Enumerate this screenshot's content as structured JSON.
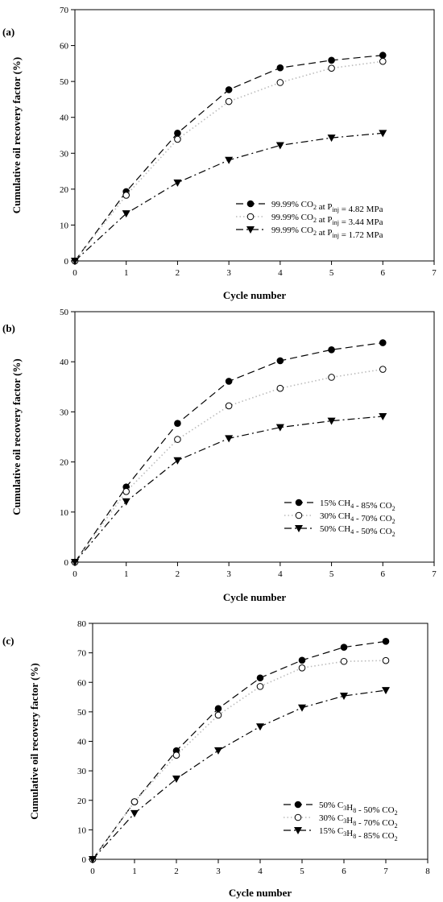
{
  "chart_data": [
    {
      "type": "line",
      "panel_label": "(a)",
      "xlabel": "Cycle number",
      "ylabel": "Cumulative oil recovery factor (%)",
      "xlim": [
        0,
        7
      ],
      "ylim": [
        0,
        70
      ],
      "xticks": [
        0,
        1,
        2,
        3,
        4,
        5,
        6,
        7
      ],
      "yticks": [
        0,
        10,
        20,
        30,
        40,
        50,
        60,
        70
      ],
      "grid": false,
      "legend_position": "right",
      "series": [
        {
          "legend": [
            [
              "t",
              "99.99% CO"
            ],
            [
              "sub",
              "2"
            ],
            [
              "t",
              " at P"
            ],
            [
              "sub",
              "inj"
            ],
            [
              "t",
              " = 4.82 MPa"
            ]
          ],
          "marker": "filled-circle",
          "line": "dashed",
          "x": [
            0,
            1,
            2,
            3,
            4,
            5,
            6
          ],
          "y": [
            0,
            19.3,
            35.6,
            47.7,
            53.8,
            55.9,
            57.3
          ]
        },
        {
          "legend": [
            [
              "t",
              "99.99% CO"
            ],
            [
              "sub",
              "2"
            ],
            [
              "t",
              " at P"
            ],
            [
              "sub",
              "inj"
            ],
            [
              "t",
              " = 3.44 MPa"
            ]
          ],
          "marker": "open-circle",
          "line": "dotted",
          "x": [
            0,
            1,
            2,
            3,
            4,
            5,
            6
          ],
          "y": [
            0,
            18.3,
            33.9,
            44.4,
            49.7,
            53.7,
            55.6
          ]
        },
        {
          "legend": [
            [
              "t",
              "99.99% CO"
            ],
            [
              "sub",
              "2"
            ],
            [
              "t",
              " at P"
            ],
            [
              "sub",
              "inj"
            ],
            [
              "t",
              " = 1.72 MPa"
            ]
          ],
          "marker": "filled-triangle-down",
          "line": "dashdot",
          "x": [
            0,
            1,
            2,
            3,
            4,
            5,
            6
          ],
          "y": [
            0,
            13.2,
            21.8,
            28.1,
            32.2,
            34.3,
            35.6
          ]
        }
      ]
    },
    {
      "type": "line",
      "panel_label": "(b)",
      "xlabel": "Cycle number",
      "ylabel": "Cumulative oil recovery factor (%)",
      "xlim": [
        0,
        7
      ],
      "ylim": [
        0,
        50
      ],
      "xticks": [
        0,
        1,
        2,
        3,
        4,
        5,
        6,
        7
      ],
      "yticks": [
        0,
        10,
        20,
        30,
        40,
        50
      ],
      "grid": false,
      "legend_position": "right",
      "series": [
        {
          "legend": [
            [
              "t",
              "15% CH"
            ],
            [
              "sub",
              "4"
            ],
            [
              "t",
              " - 85% CO"
            ],
            [
              "sub",
              "2"
            ]
          ],
          "marker": "filled-circle",
          "line": "dashed",
          "x": [
            0,
            1,
            2,
            3,
            4,
            5,
            6
          ],
          "y": [
            0,
            15.0,
            27.7,
            36.1,
            40.2,
            42.4,
            43.8
          ]
        },
        {
          "legend": [
            [
              "t",
              "30% CH"
            ],
            [
              "sub",
              "4"
            ],
            [
              "t",
              " - 70% CO"
            ],
            [
              "sub",
              "2"
            ]
          ],
          "marker": "open-circle",
          "line": "dotted",
          "x": [
            0,
            1,
            2,
            3,
            4,
            5,
            6
          ],
          "y": [
            0,
            14.1,
            24.5,
            31.2,
            34.7,
            36.9,
            38.5
          ]
        },
        {
          "legend": [
            [
              "t",
              "50% CH"
            ],
            [
              "sub",
              "4"
            ],
            [
              "t",
              " - 50% CO"
            ],
            [
              "sub",
              "2"
            ]
          ],
          "marker": "filled-triangle-down",
          "line": "dashdot",
          "x": [
            0,
            1,
            2,
            3,
            4,
            5,
            6
          ],
          "y": [
            0,
            12.1,
            20.3,
            24.7,
            26.9,
            28.2,
            29.1
          ]
        }
      ]
    },
    {
      "type": "line",
      "panel_label": "(c)",
      "xlabel": "Cycle number",
      "ylabel": "Cumulative oil recovery factor (%)",
      "xlim": [
        0,
        8
      ],
      "ylim": [
        0,
        80
      ],
      "xticks": [
        0,
        1,
        2,
        3,
        4,
        5,
        6,
        7,
        8
      ],
      "yticks": [
        0,
        10,
        20,
        30,
        40,
        50,
        60,
        70,
        80
      ],
      "grid": false,
      "legend_position": "bottom-right",
      "series": [
        {
          "legend": [
            [
              "t",
              "50% C"
            ],
            [
              "sub",
              "3"
            ],
            [
              "t",
              "H"
            ],
            [
              "sub",
              "8"
            ],
            [
              "t",
              " - 50% CO"
            ],
            [
              "sub",
              "2"
            ]
          ],
          "marker": "filled-circle",
          "line": "dashed",
          "x": [
            0,
            1,
            2,
            3,
            4,
            5,
            6,
            7
          ],
          "y": [
            0,
            19.5,
            36.8,
            51.1,
            61.5,
            67.5,
            71.9,
            73.9
          ]
        },
        {
          "legend": [
            [
              "t",
              "30% C"
            ],
            [
              "sub",
              "3"
            ],
            [
              "t",
              "H"
            ],
            [
              "sub",
              "8"
            ],
            [
              "t",
              " - 70% CO"
            ],
            [
              "sub",
              "2"
            ]
          ],
          "marker": "open-circle",
          "line": "dotted",
          "x": [
            0,
            1,
            2,
            3,
            4,
            5,
            6,
            7
          ],
          "y": [
            0,
            19.5,
            35.3,
            48.9,
            58.6,
            64.9,
            67.1,
            67.4
          ]
        },
        {
          "legend": [
            [
              "t",
              "15% C"
            ],
            [
              "sub",
              "3"
            ],
            [
              "t",
              "H"
            ],
            [
              "sub",
              "8"
            ],
            [
              "t",
              " - 85% CO"
            ],
            [
              "sub",
              "2"
            ]
          ],
          "marker": "filled-triangle-down",
          "line": "dashdot",
          "x": [
            0,
            1,
            2,
            3,
            4,
            5,
            6,
            7
          ],
          "y": [
            0,
            15.6,
            27.3,
            36.9,
            45.0,
            51.4,
            55.4,
            57.3
          ]
        }
      ]
    }
  ]
}
